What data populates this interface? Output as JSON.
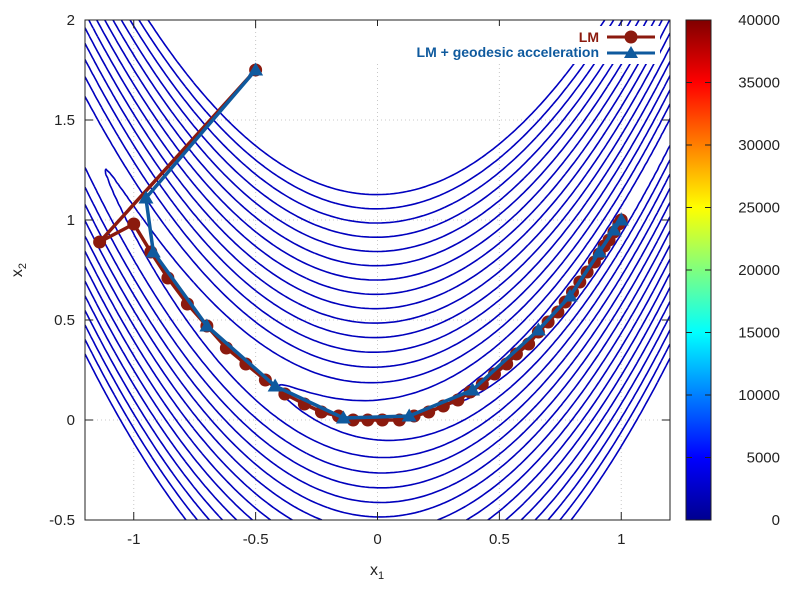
{
  "chart_data": {
    "type": "line",
    "title": "",
    "xlabel": "x",
    "xlabel_sub": "1",
    "ylabel": "x",
    "ylabel_sub": "2",
    "xlim": [
      -1.2,
      1.2
    ],
    "ylim": [
      -0.5,
      2
    ],
    "xticks": [
      -1,
      -0.5,
      0,
      0.5,
      1
    ],
    "xtick_labels": [
      "-1",
      "-0.5",
      "0",
      "0.5",
      "1"
    ],
    "yticks": [
      -0.5,
      0,
      0.5,
      1,
      1.5,
      2
    ],
    "ytick_labels": [
      "-0.5",
      "0",
      "0.5",
      "1",
      "1.5",
      "2"
    ],
    "grid": true,
    "legend_position": "top-right",
    "background_contour": {
      "function": "rosenbrock",
      "levels_min": 0,
      "levels_max": 40000
    },
    "colorbar": {
      "min": 0,
      "max": 40000,
      "ticks": [
        0,
        5000,
        10000,
        15000,
        20000,
        25000,
        30000,
        35000,
        40000
      ],
      "tick_labels": [
        "0",
        "5000",
        "10000",
        "15000",
        "20000",
        "25000",
        "30000",
        "35000",
        "40000"
      ],
      "colormap": "jet"
    },
    "series": [
      {
        "name": "LM",
        "color": "#8b1a0e",
        "marker": "circle",
        "x": [
          -0.5,
          -1.14,
          -1.0,
          -0.93,
          -0.86,
          -0.78,
          -0.7,
          -0.62,
          -0.54,
          -0.46,
          -0.38,
          -0.3,
          -0.23,
          -0.16,
          -0.1,
          -0.04,
          0.02,
          0.09,
          0.15,
          0.21,
          0.27,
          0.33,
          0.38,
          0.43,
          0.48,
          0.53,
          0.57,
          0.62,
          0.66,
          0.7,
          0.74,
          0.77,
          0.8,
          0.83,
          0.86,
          0.89,
          0.91,
          0.93,
          0.95,
          0.97,
          0.99,
          1.0
        ],
        "y": [
          1.75,
          0.89,
          0.98,
          0.84,
          0.71,
          0.58,
          0.47,
          0.36,
          0.28,
          0.2,
          0.13,
          0.08,
          0.04,
          0.02,
          0.0,
          0.0,
          0.0,
          0.0,
          0.02,
          0.04,
          0.07,
          0.1,
          0.14,
          0.18,
          0.23,
          0.28,
          0.33,
          0.38,
          0.44,
          0.49,
          0.54,
          0.59,
          0.64,
          0.69,
          0.74,
          0.79,
          0.83,
          0.87,
          0.9,
          0.94,
          0.98,
          1.0
        ]
      },
      {
        "name": "LM + geodesic acceleration",
        "color": "#0f5a9e",
        "marker": "triangle",
        "x": [
          -0.5,
          -0.95,
          -0.92,
          -0.7,
          -0.42,
          -0.14,
          0.13,
          0.39,
          0.66,
          0.79,
          0.91,
          0.97,
          1.0
        ],
        "y": [
          1.75,
          1.11,
          0.84,
          0.47,
          0.17,
          0.01,
          0.02,
          0.15,
          0.45,
          0.62,
          0.84,
          0.95,
          1.0
        ]
      }
    ]
  }
}
